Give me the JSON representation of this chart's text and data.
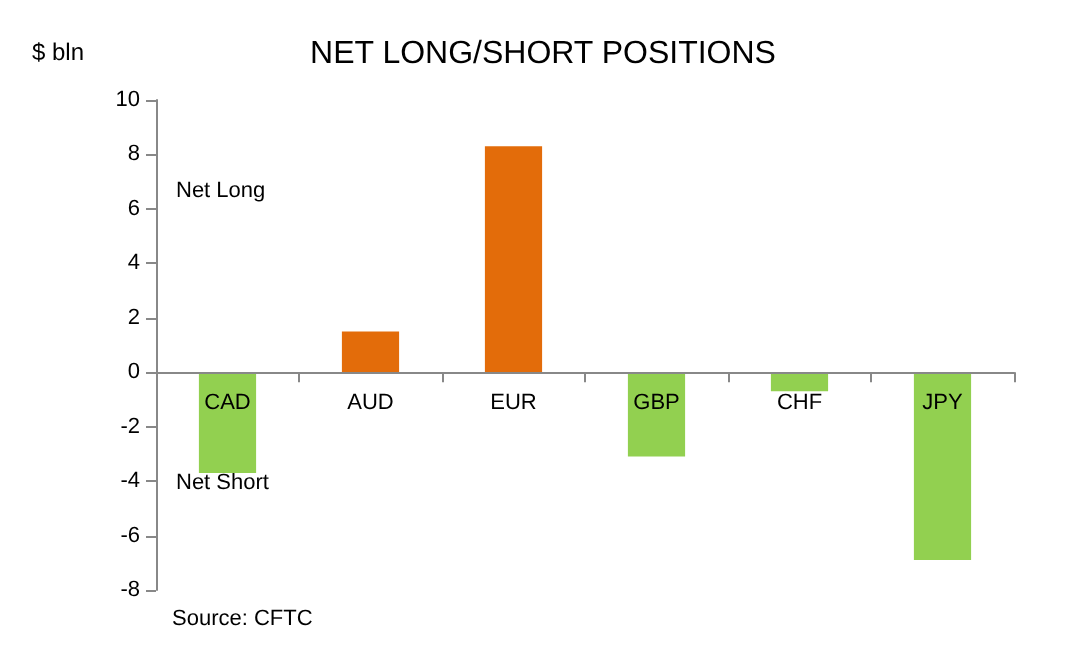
{
  "chart_data": {
    "type": "bar",
    "title": "NET LONG/SHORT POSITIONS",
    "ylabel": "$ bln",
    "categories": [
      "CAD",
      "AUD",
      "EUR",
      "GBP",
      "CHF",
      "JPY"
    ],
    "values": [
      -3.7,
      1.5,
      8.3,
      -3.1,
      -0.7,
      -6.9
    ],
    "colors": [
      "#92d050",
      "#e36c0a",
      "#e36c0a",
      "#92d050",
      "#92d050",
      "#92d050"
    ],
    "ylim": [
      -8,
      10
    ],
    "yticks": [
      -8,
      -6,
      -4,
      -2,
      0,
      2,
      4,
      6,
      8,
      10
    ],
    "annotations": [
      "Net Long",
      "Net Short",
      "Source: CFTC"
    ]
  }
}
